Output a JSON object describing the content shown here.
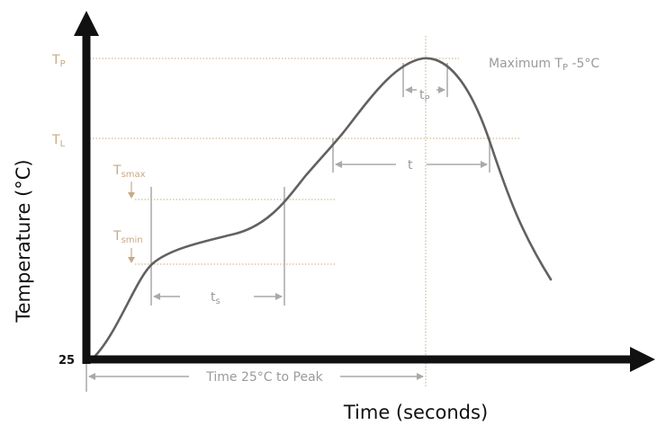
{
  "diagram": {
    "y_axis_title": "Temperature (°C)",
    "x_axis_title": "Time (seconds)",
    "origin_label": "25",
    "levels": {
      "tp": {
        "main": "T",
        "sub": "P"
      },
      "tl": {
        "main": "T",
        "sub": "L"
      },
      "tsmax": {
        "main": "T",
        "sub": "smax"
      },
      "tsmin": {
        "main": "T",
        "sub": "smin"
      }
    },
    "annotations": {
      "max_tp_prefix": "Maximum T",
      "max_tp_sub": "P",
      "max_tp_suffix": " -5°C",
      "tp_interval": {
        "main": "t",
        "sub": "P"
      },
      "t_interval": "t",
      "ts_interval": {
        "main": "t",
        "sub": "s"
      },
      "time_to_peak": "Time 25°C to Peak"
    },
    "colors": {
      "axis": "#111111",
      "curve": "#616161",
      "guide_tan": "#c7aa84",
      "guide_grey": "#a9a9a9"
    }
  }
}
